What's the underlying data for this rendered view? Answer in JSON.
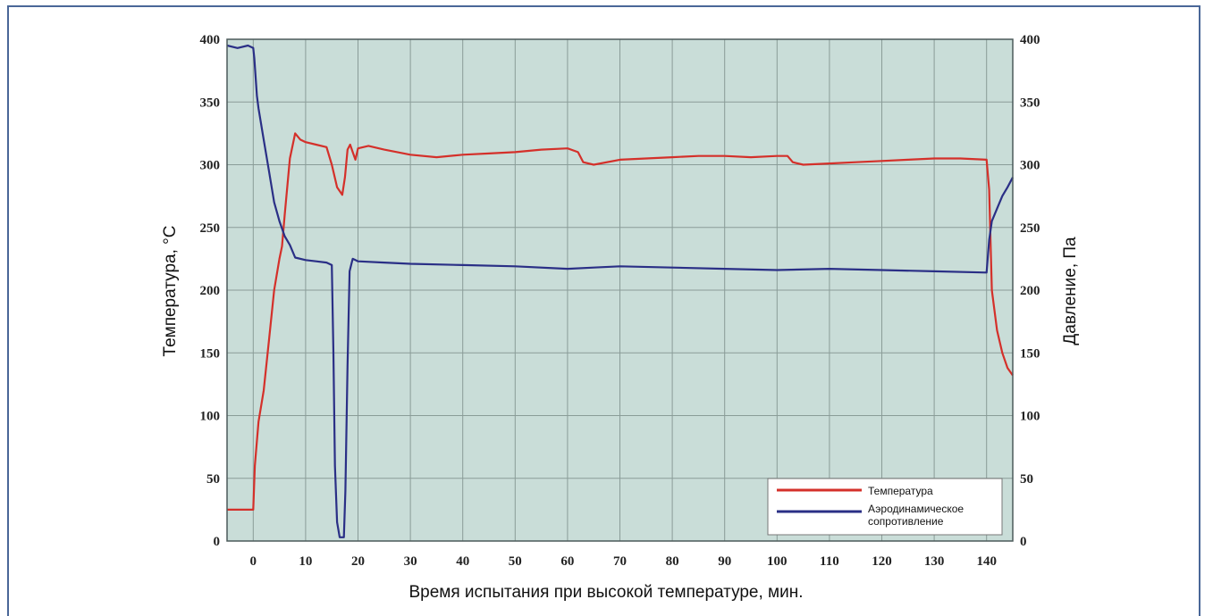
{
  "chart_data": {
    "type": "line",
    "title": "",
    "xlabel": "Время испытания при высокой температуре, мин.",
    "ylabel": "Температура, °C",
    "y2label": "Давление, Па",
    "xlim": [
      -5,
      145
    ],
    "ylim": [
      0,
      400
    ],
    "y2lim": [
      0,
      400
    ],
    "x_ticks": [
      0,
      10,
      20,
      30,
      40,
      50,
      60,
      70,
      80,
      90,
      100,
      110,
      120,
      130,
      140
    ],
    "y_ticks": [
      0,
      50,
      100,
      150,
      200,
      250,
      300,
      350,
      400
    ],
    "y2_ticks": [
      0,
      50,
      100,
      150,
      200,
      250,
      300,
      350,
      400
    ],
    "grid": true,
    "legend_position": "bottom-right",
    "colors": {
      "plot_bg": "#c9ddd8",
      "grid": "#8a9c98",
      "temperature": "#d4302a",
      "pressure": "#2a2f86"
    },
    "series": [
      {
        "name": "Температура",
        "axis": "left",
        "x": [
          -5,
          0,
          0.3,
          1,
          2,
          3,
          4,
          5,
          5.5,
          6,
          7,
          8,
          9,
          10,
          12,
          14,
          15,
          16,
          17,
          17.5,
          18,
          18.5,
          19,
          19.5,
          20,
          22,
          25,
          30,
          35,
          40,
          45,
          50,
          55,
          60,
          62,
          63,
          65,
          70,
          75,
          80,
          85,
          90,
          95,
          100,
          102,
          103,
          105,
          110,
          115,
          120,
          125,
          130,
          135,
          140,
          140.5,
          141,
          142,
          143,
          144,
          145
        ],
        "y": [
          25,
          25,
          60,
          95,
          120,
          160,
          200,
          225,
          235,
          260,
          305,
          325,
          320,
          318,
          316,
          314,
          300,
          282,
          276,
          290,
          312,
          316,
          310,
          304,
          313,
          315,
          312,
          308,
          306,
          308,
          309,
          310,
          312,
          313,
          310,
          302,
          300,
          304,
          305,
          306,
          307,
          307,
          306,
          307,
          307,
          302,
          300,
          301,
          302,
          303,
          304,
          305,
          305,
          304,
          280,
          200,
          168,
          150,
          138,
          132
        ]
      },
      {
        "name": "Аэродинамическое сопротивление",
        "axis": "right",
        "x": [
          -5,
          -3,
          -1,
          0,
          0.2,
          0.7,
          1,
          2,
          3,
          4,
          5,
          6,
          7,
          8,
          10,
          12,
          14,
          15,
          15.3,
          15.6,
          16,
          16.5,
          17,
          17.3,
          17.6,
          18,
          18.4,
          18.8,
          19,
          19.5,
          20,
          25,
          30,
          40,
          50,
          60,
          65,
          70,
          80,
          90,
          100,
          110,
          120,
          130,
          140,
          140.5,
          141,
          142,
          143,
          144,
          145
        ],
        "y": [
          395,
          393,
          395,
          393,
          385,
          355,
          345,
          320,
          295,
          270,
          255,
          243,
          236,
          226,
          224,
          223,
          222,
          220,
          150,
          60,
          15,
          3,
          3,
          3,
          40,
          140,
          215,
          222,
          225,
          224,
          223,
          222,
          221,
          220,
          219,
          217,
          218,
          219,
          218,
          217,
          216,
          217,
          216,
          215,
          214,
          240,
          255,
          265,
          275,
          282,
          290
        ]
      }
    ]
  }
}
